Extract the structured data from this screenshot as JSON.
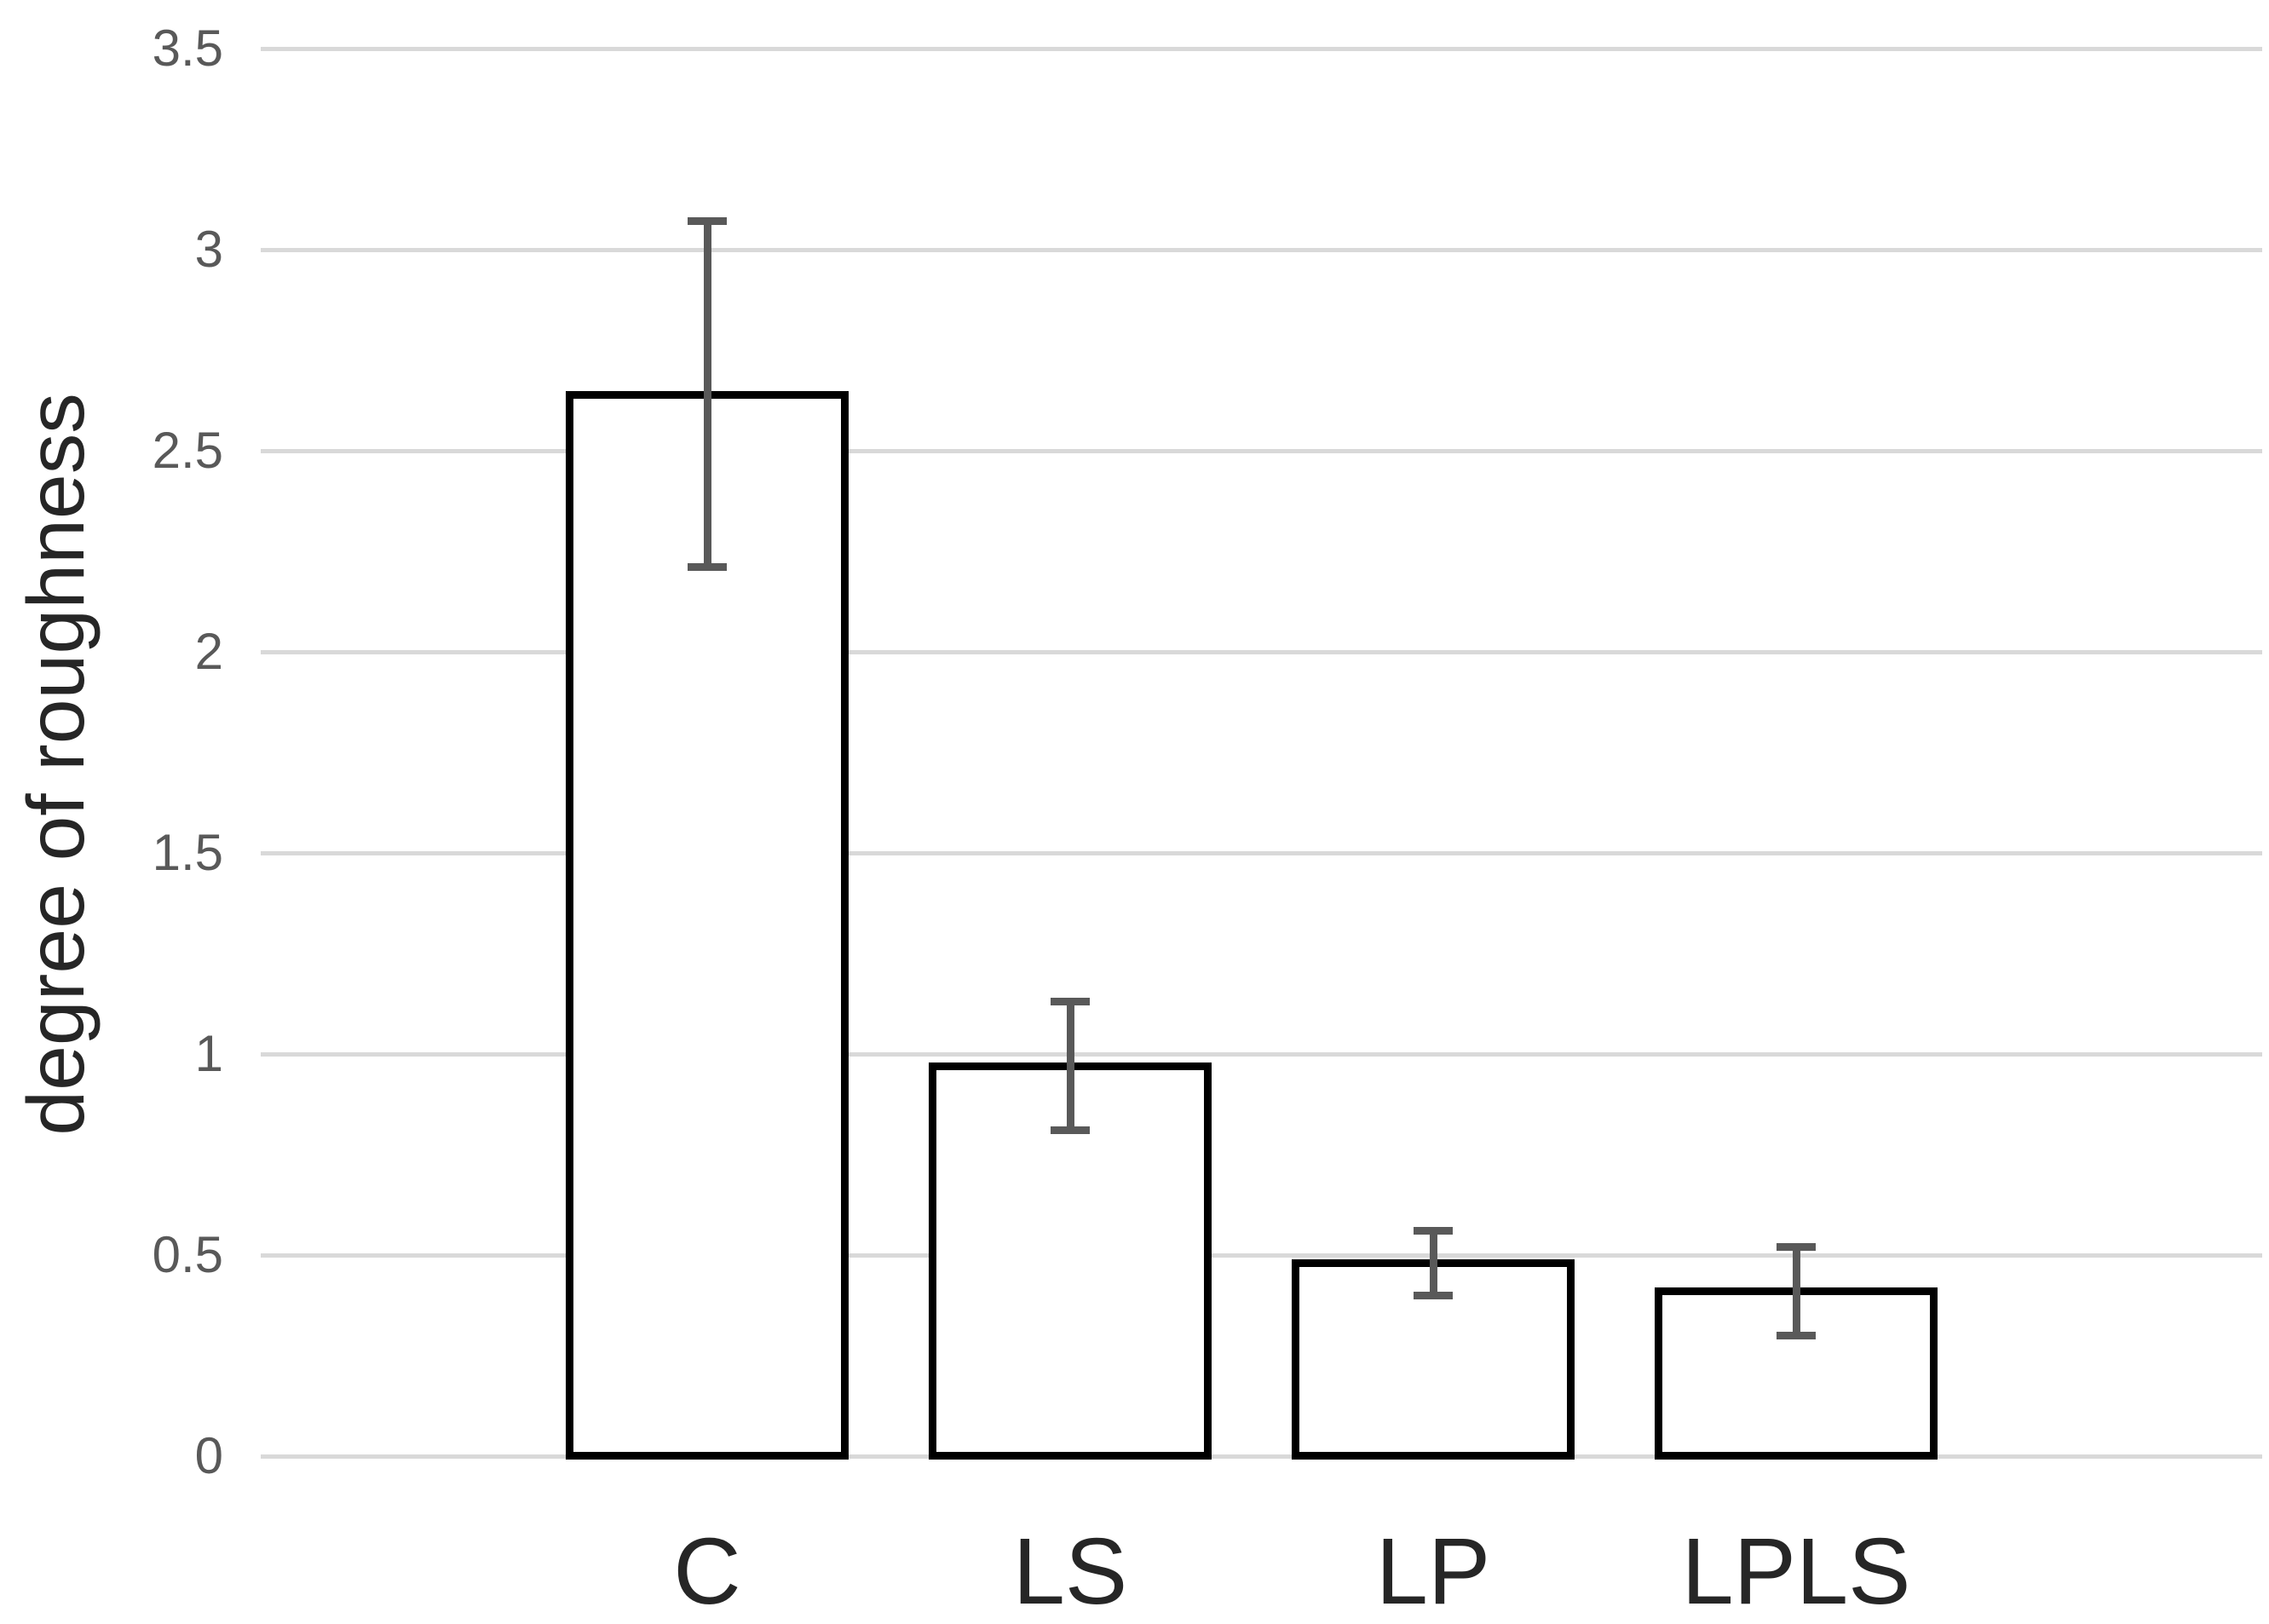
{
  "chart_data": {
    "type": "bar",
    "title": "",
    "ylabel": "degree of roughness",
    "xlabel": "",
    "categories": [
      "C",
      "LS",
      "LP",
      "LPLS"
    ],
    "values": [
      2.64,
      0.97,
      0.48,
      0.41
    ],
    "error_bars": [
      0.43,
      0.16,
      0.08,
      0.11
    ],
    "error_top": [
      3.07,
      1.13,
      0.56,
      0.52
    ],
    "error_bottom": [
      2.21,
      0.81,
      0.4,
      0.3
    ],
    "ylim": [
      0,
      3.5
    ],
    "ytick_values": [
      0,
      0.5,
      1,
      1.5,
      2,
      2.5,
      3,
      3.5
    ],
    "ytick_labels": [
      "0",
      "0.5",
      "1",
      "1.5",
      "2",
      "2.5",
      "3",
      "3.5"
    ],
    "grid": "horizontal",
    "legend": "none",
    "bar_fill": "#ffffff",
    "bar_border": "#000000",
    "error_color": "#595959",
    "gridline_color": "#d9d9d9",
    "tick_text_color": "#595959",
    "label_text_color": "#262626"
  }
}
